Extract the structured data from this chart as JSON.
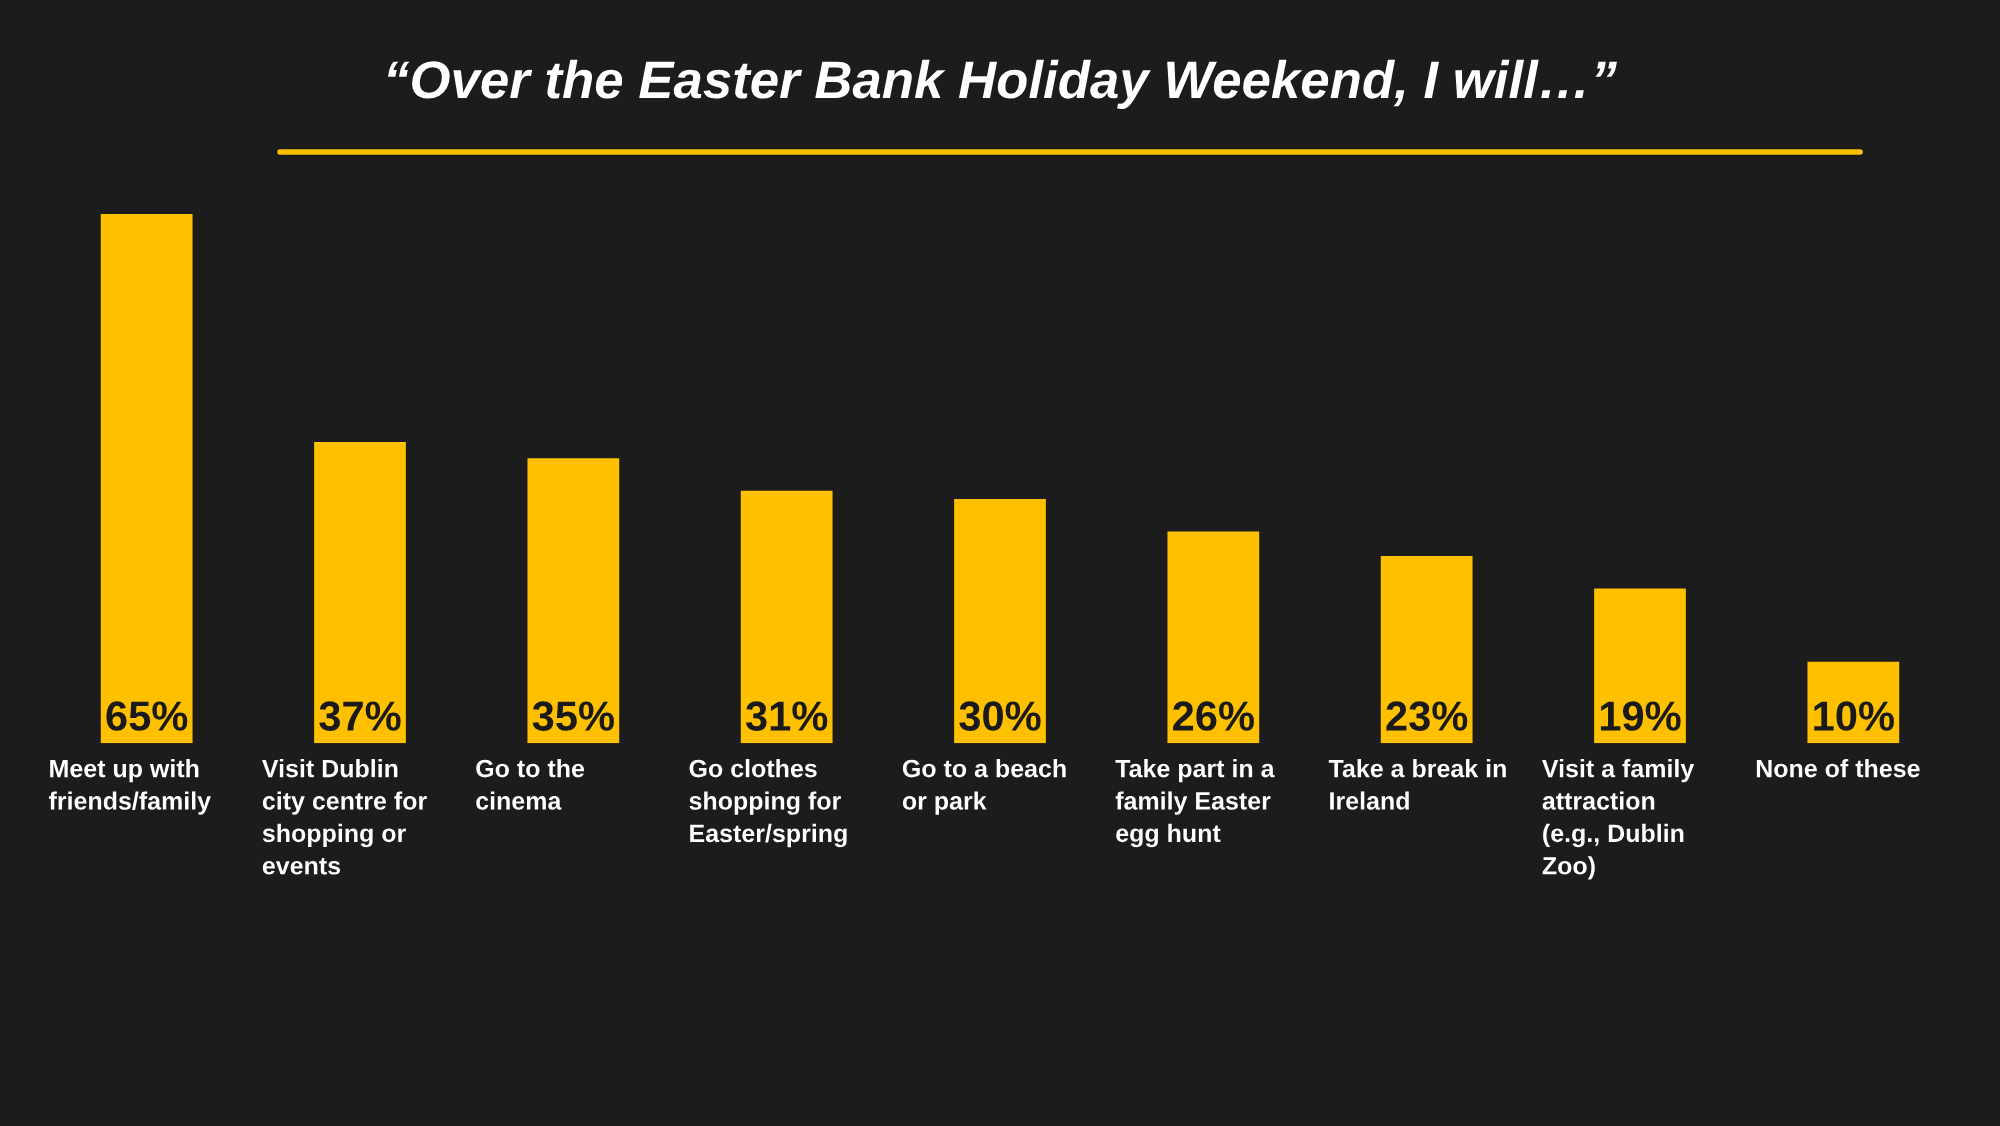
{
  "chart_data": {
    "type": "bar",
    "title": "“Over the Easter Bank Holiday Weekend, I will…”",
    "categories": [
      "Meet up with friends/family",
      "Visit Dublin city centre for shopping or events",
      "Go to the cinema",
      "Go clothes shopping for Easter/spring",
      "Go to a beach or park",
      "Take part in a family Easter egg hunt",
      "Take a break in Ireland",
      "Visit a family attraction (e.g., Dublin Zoo)",
      "None of these"
    ],
    "values": [
      65,
      37,
      35,
      31,
      30,
      26,
      23,
      19,
      10
    ],
    "value_labels": [
      "65%",
      "37%",
      "35%",
      "31%",
      "30%",
      "26%",
      "23%",
      "19%",
      "10%"
    ],
    "color": "#ffc000"
  }
}
